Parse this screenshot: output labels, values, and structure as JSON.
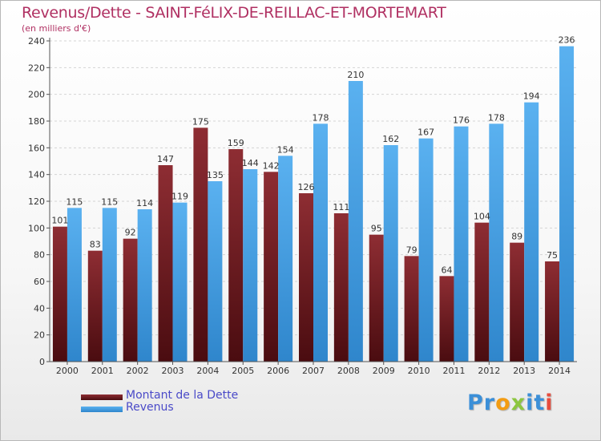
{
  "title": "Revenus/Dette - SAINT-FéLIX-DE-REILLAC-ET-MORTEMART",
  "subtitle": "(en milliers d'€)",
  "logo": {
    "text": "Proxiti",
    "letters": [
      {
        "ch": "P",
        "color": "#3b8fd8"
      },
      {
        "ch": "r",
        "color": "#3b8fd8"
      },
      {
        "ch": "o",
        "color": "#f39c12"
      },
      {
        "ch": "x",
        "color": "#8cc63f"
      },
      {
        "ch": "i",
        "color": "#3b8fd8"
      },
      {
        "ch": "t",
        "color": "#3b8fd8"
      },
      {
        "ch": "i",
        "color": "#e84c3d"
      }
    ]
  },
  "chart_data": {
    "type": "bar",
    "title": "Revenus/Dette - SAINT-FéLIX-DE-REILLAC-ET-MORTEMART",
    "subtitle": "(en milliers d'€)",
    "categories": [
      "2000",
      "2001",
      "2002",
      "2003",
      "2004",
      "2005",
      "2006",
      "2007",
      "2008",
      "2009",
      "2010",
      "2011",
      "2012",
      "2013",
      "2014"
    ],
    "series": [
      {
        "name": "Montant de la Dette",
        "color": "#6e1a1f",
        "values": [
          101,
          83,
          92,
          147,
          175,
          159,
          142,
          126,
          111,
          95,
          79,
          64,
          104,
          89,
          75
        ]
      },
      {
        "name": "Revenus",
        "color": "#4aa3e6",
        "values": [
          115,
          115,
          114,
          119,
          135,
          144,
          154,
          178,
          210,
          162,
          167,
          176,
          178,
          194,
          236
        ]
      }
    ],
    "ylim": [
      0,
      240
    ],
    "yticks": [
      0,
      20,
      40,
      60,
      80,
      100,
      120,
      140,
      160,
      180,
      200,
      220,
      240
    ],
    "grid": true,
    "legend": "bottom-left"
  }
}
